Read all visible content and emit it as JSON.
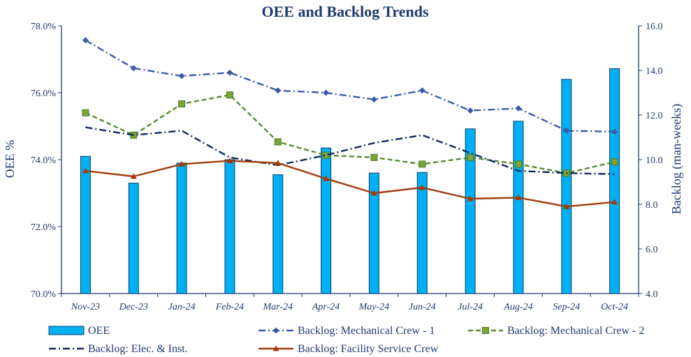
{
  "chart_data": {
    "type": "bar",
    "title": "OEE and Backlog Trends",
    "categories": [
      "Nov-23",
      "Dec-23",
      "Jan-24",
      "Feb-24",
      "Mar-24",
      "Apr-24",
      "May-24",
      "Jun-24",
      "Jul-24",
      "Aug-24",
      "Sep-24",
      "Oct-24"
    ],
    "ylabel": "OEE %",
    "y2label": "Backlog (man-weeks)",
    "ylim": [
      70.0,
      78.0
    ],
    "y2lim": [
      4.0,
      16.0
    ],
    "yticks": [
      "70.0%",
      "72.0%",
      "74.0%",
      "76.0%",
      "78.0%"
    ],
    "y2ticks": [
      "4.0",
      "6.0",
      "8.0",
      "10.0",
      "12.0",
      "14.0",
      "16.0"
    ],
    "grid": false,
    "legend_position": "bottom",
    "bar_series": {
      "name": "OEE",
      "axis": "left",
      "color": "#00b0f0",
      "values": [
        74.1,
        73.3,
        73.9,
        74.0,
        73.55,
        74.35,
        73.6,
        73.62,
        74.92,
        75.15,
        76.4,
        76.72
      ]
    },
    "line_series": [
      {
        "name": "Backlog: Mechanical Crew - 1",
        "axis": "right",
        "color": "#3a5ba8",
        "dash": "dashdot",
        "marker": "diamond",
        "values": [
          15.35,
          14.1,
          13.75,
          13.9,
          13.1,
          13.0,
          12.7,
          13.1,
          12.2,
          12.3,
          11.3,
          11.25
        ]
      },
      {
        "name": "Backlog: Mechanical Crew - 2",
        "axis": "right",
        "color": "#5a8a2e",
        "dash": "dash",
        "marker": "square",
        "values": [
          12.1,
          11.1,
          12.5,
          12.9,
          10.8,
          10.2,
          10.1,
          9.8,
          10.1,
          9.8,
          9.4,
          9.9
        ]
      },
      {
        "name": "Backlog: Elec. & Inst.",
        "axis": "right",
        "color": "#0f2a5c",
        "dash": "dashdot",
        "marker": "none",
        "values": [
          11.45,
          11.1,
          11.3,
          10.1,
          9.75,
          10.2,
          10.75,
          11.1,
          10.3,
          9.5,
          9.4,
          9.35
        ]
      },
      {
        "name": "Backlog: Facility Service Crew",
        "axis": "right",
        "color": "#a03c0c",
        "dash": "solid",
        "marker": "triangle",
        "values": [
          9.5,
          9.25,
          9.8,
          9.95,
          9.85,
          9.15,
          8.5,
          8.75,
          8.25,
          8.3,
          7.9,
          8.1
        ]
      }
    ]
  }
}
